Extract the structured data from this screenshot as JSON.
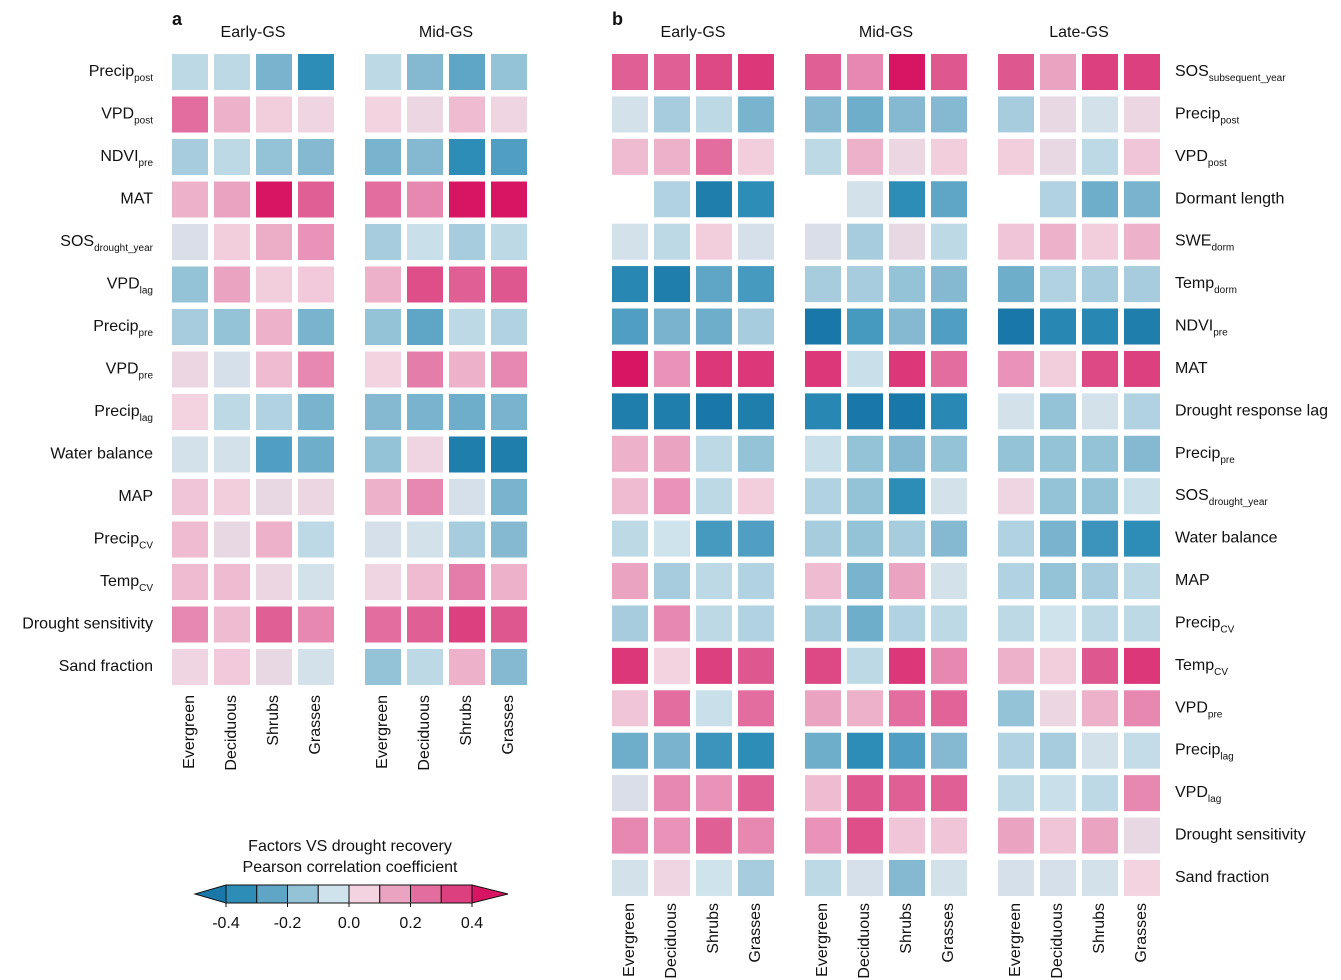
{
  "chart_data": [
    {
      "type": "heatmap",
      "title": "a",
      "groups": [
        "Early-GS",
        "Mid-GS"
      ],
      "columns": [
        "Evergreen",
        "Deciduous",
        "Shrubs",
        "Grasses"
      ],
      "rows": [
        {
          "name": "Precip",
          "sub": "post"
        },
        {
          "name": "VPD",
          "sub": "post"
        },
        {
          "name": "NDVI",
          "sub": "pre"
        },
        {
          "name": "MAT"
        },
        {
          "name": "SOS",
          "sub": "drought_year"
        },
        {
          "name": "VPD",
          "sub": "lag"
        },
        {
          "name": "Precip",
          "sub": "pre"
        },
        {
          "name": "VPD",
          "sub": "pre"
        },
        {
          "name": "Precip",
          "sub": "lag"
        },
        {
          "name": "Water balance"
        },
        {
          "name": "MAP"
        },
        {
          "name": "Precip",
          "sub": "CV"
        },
        {
          "name": "Temp",
          "sub": "CV"
        },
        {
          "name": "Drought sensitivity"
        },
        {
          "name": "Sand fraction"
        }
      ],
      "values": [
        [
          -0.08,
          -0.08,
          -0.2,
          -0.35,
          -0.08,
          -0.18,
          -0.25,
          -0.15
        ],
        [
          0.25,
          0.12,
          0.06,
          0.04,
          0.05,
          0.03,
          0.1,
          0.04
        ],
        [
          -0.12,
          -0.08,
          -0.15,
          -0.18,
          -0.2,
          -0.18,
          -0.35,
          -0.28
        ],
        [
          0.12,
          0.15,
          0.45,
          0.28,
          0.25,
          0.2,
          0.45,
          0.45
        ],
        [
          -0.02,
          0.06,
          0.13,
          0.18,
          -0.12,
          -0.06,
          -0.12,
          -0.08
        ],
        [
          -0.15,
          0.15,
          0.06,
          0.07,
          0.12,
          0.32,
          0.28,
          0.3
        ],
        [
          -0.12,
          -0.15,
          0.12,
          -0.2,
          -0.15,
          -0.25,
          -0.08,
          -0.1
        ],
        [
          0.03,
          -0.03,
          0.1,
          0.2,
          0.05,
          0.22,
          0.12,
          0.2
        ],
        [
          0.05,
          -0.08,
          -0.1,
          -0.2,
          -0.18,
          -0.2,
          -0.22,
          -0.2
        ],
        [
          -0.04,
          -0.04,
          -0.28,
          -0.22,
          -0.15,
          0.04,
          -0.42,
          -0.42
        ],
        [
          0.08,
          0.06,
          0.02,
          0.03,
          0.12,
          0.2,
          -0.03,
          -0.2
        ],
        [
          0.1,
          0.02,
          0.12,
          -0.08,
          -0.03,
          -0.04,
          -0.12,
          -0.18
        ],
        [
          0.1,
          0.1,
          0.03,
          -0.04,
          0.04,
          0.1,
          0.22,
          0.12
        ],
        [
          0.2,
          0.1,
          0.28,
          0.2,
          0.25,
          0.28,
          0.35,
          0.3
        ],
        [
          0.04,
          0.07,
          0.02,
          -0.04,
          -0.15,
          -0.08,
          0.12,
          -0.18
        ]
      ]
    },
    {
      "type": "heatmap",
      "title": "b",
      "groups": [
        "Early-GS",
        "Mid-GS",
        "Late-GS"
      ],
      "columns": [
        "Evergreen",
        "Deciduous",
        "Shrubs",
        "Grasses"
      ],
      "rows": [
        {
          "name": "SOS",
          "sub": "subsequent_year"
        },
        {
          "name": "Precip",
          "sub": "post"
        },
        {
          "name": "VPD",
          "sub": "post"
        },
        {
          "name": "Dormant length"
        },
        {
          "name": "SWE",
          "sub": "dorm"
        },
        {
          "name": "Temp",
          "sub": "dorm"
        },
        {
          "name": "NDVI",
          "sub": "pre"
        },
        {
          "name": "MAT"
        },
        {
          "name": "Drought response lag"
        },
        {
          "name": "Precip",
          "sub": "pre"
        },
        {
          "name": "SOS",
          "sub": "drought_year"
        },
        {
          "name": "Water balance"
        },
        {
          "name": "MAP"
        },
        {
          "name": "Precip",
          "sub": "CV"
        },
        {
          "name": "Temp",
          "sub": "CV"
        },
        {
          "name": "VPD",
          "sub": "pre"
        },
        {
          "name": "Precip",
          "sub": "lag"
        },
        {
          "name": "VPD",
          "sub": "lag"
        },
        {
          "name": "Drought sensitivity"
        },
        {
          "name": "Sand fraction"
        }
      ],
      "values": [
        [
          0.28,
          0.28,
          0.33,
          0.37,
          0.28,
          0.2,
          0.45,
          0.3,
          0.3,
          0.15,
          0.35,
          0.35
        ],
        [
          -0.04,
          -0.12,
          -0.08,
          -0.2,
          -0.18,
          -0.22,
          -0.18,
          -0.18,
          -0.12,
          0.02,
          -0.04,
          0.03
        ],
        [
          0.1,
          0.12,
          0.25,
          0.06,
          -0.08,
          0.12,
          0.03,
          0.06,
          0.06,
          0.02,
          -0.08,
          0.08
        ],
        [
          null,
          -0.1,
          -0.42,
          -0.35,
          null,
          -0.04,
          -0.35,
          -0.25,
          null,
          -0.1,
          -0.22,
          -0.2
        ],
        [
          -0.04,
          -0.08,
          0.06,
          -0.03,
          -0.02,
          -0.12,
          0.02,
          -0.08,
          0.08,
          0.12,
          0.06,
          0.12
        ],
        [
          -0.38,
          -0.42,
          -0.25,
          -0.3,
          -0.12,
          -0.12,
          -0.15,
          -0.18,
          -0.22,
          -0.1,
          -0.12,
          -0.12
        ],
        [
          -0.28,
          -0.2,
          -0.22,
          -0.12,
          -0.45,
          -0.3,
          -0.18,
          -0.28,
          -0.45,
          -0.38,
          -0.38,
          -0.42
        ],
        [
          0.45,
          0.18,
          0.37,
          0.37,
          0.37,
          -0.06,
          0.37,
          0.25,
          0.18,
          0.06,
          0.33,
          0.35
        ],
        [
          -0.42,
          -0.42,
          -0.45,
          -0.42,
          -0.38,
          -0.45,
          -0.45,
          -0.37,
          -0.04,
          -0.15,
          -0.04,
          -0.1
        ],
        [
          0.12,
          0.15,
          -0.08,
          -0.15,
          -0.06,
          -0.15,
          -0.18,
          -0.15,
          -0.15,
          -0.15,
          -0.15,
          -0.18
        ],
        [
          0.1,
          0.18,
          -0.08,
          0.06,
          -0.1,
          -0.15,
          -0.35,
          -0.04,
          0.04,
          -0.15,
          -0.15,
          -0.06
        ],
        [
          -0.08,
          -0.05,
          -0.3,
          -0.28,
          -0.12,
          -0.15,
          -0.12,
          -0.18,
          -0.1,
          -0.2,
          -0.32,
          -0.35
        ],
        [
          0.15,
          -0.12,
          -0.08,
          -0.1,
          0.1,
          -0.2,
          0.15,
          -0.04,
          -0.1,
          -0.15,
          -0.12,
          -0.08
        ],
        [
          -0.12,
          0.2,
          -0.08,
          -0.1,
          -0.12,
          -0.22,
          -0.1,
          -0.08,
          -0.08,
          -0.05,
          -0.08,
          -0.08
        ],
        [
          0.37,
          0.05,
          0.35,
          0.3,
          0.33,
          -0.08,
          0.37,
          0.2,
          0.12,
          0.06,
          0.3,
          0.37
        ],
        [
          0.08,
          0.25,
          -0.06,
          0.25,
          0.15,
          0.12,
          0.25,
          0.27,
          -0.15,
          0.03,
          0.12,
          0.2
        ],
        [
          -0.22,
          -0.2,
          -0.32,
          -0.35,
          -0.22,
          -0.35,
          -0.28,
          -0.18,
          -0.1,
          -0.12,
          -0.04,
          -0.07
        ],
        [
          -0.02,
          0.2,
          0.18,
          0.28,
          0.1,
          0.3,
          0.28,
          0.28,
          -0.08,
          -0.06,
          -0.08,
          0.2
        ],
        [
          0.2,
          0.18,
          0.28,
          0.2,
          0.18,
          0.32,
          0.08,
          0.08,
          0.15,
          0.08,
          0.15,
          0.02
        ],
        [
          -0.04,
          0.04,
          -0.05,
          -0.12,
          -0.08,
          -0.03,
          -0.18,
          -0.04,
          -0.03,
          -0.03,
          -0.04,
          0.05
        ]
      ]
    }
  ],
  "legend": {
    "title": [
      "Factors VS drought recovery",
      "Pearson correlation coefficient"
    ],
    "ticks": [
      -0.4,
      -0.2,
      {
        "value": 0,
        "label": "0.0"
      },
      0.2,
      0.4
    ],
    "boundaries": [
      -0.4,
      -0.3,
      -0.2,
      -0.1,
      0,
      0.1,
      0.2,
      0.3,
      0.4
    ],
    "colors": [
      "#1a78a8",
      "#2e8db7",
      "#5ea5c6",
      "#94c2d6",
      "#cfe3ec",
      "#f3d3e0",
      "#eaa3c1",
      "#e26d9e",
      "#dc407f",
      "#d81562"
    ]
  }
}
